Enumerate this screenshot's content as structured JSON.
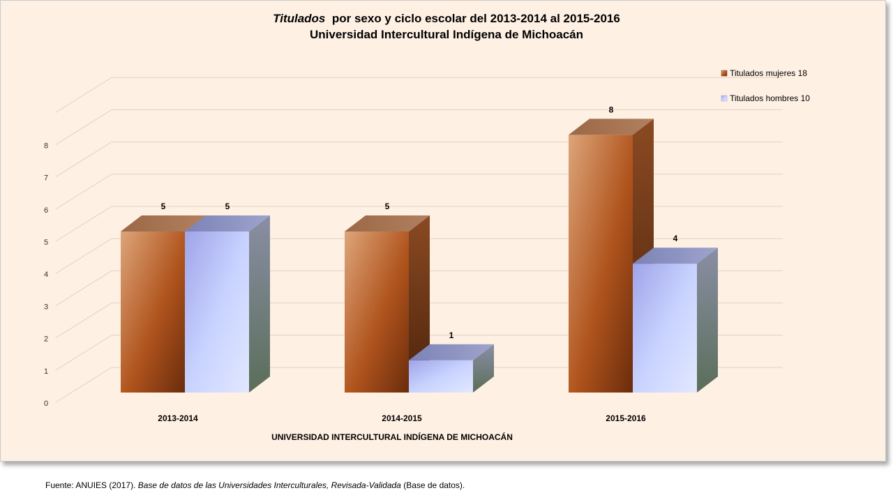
{
  "chart_data": {
    "type": "bar",
    "title_italic": "Titulados",
    "title_rest": "por sexo y ciclo escolar del 2013-2014 al 2015-2016",
    "subtitle": "Universidad Intercultural Indígena de Michoacán",
    "xlabel": "UNIVERSIDAD INTERCULTURAL INDÍGENA DE MICHOACÁN",
    "ylabel": "",
    "categories": [
      "2013-2014",
      "2014-2015",
      "2015-2016"
    ],
    "series": [
      {
        "name": "Titulados mujeres 18",
        "values": [
          5,
          5,
          8
        ],
        "color": "#b0602a"
      },
      {
        "name": "Titulados hombres 10",
        "values": [
          5,
          1,
          4
        ],
        "color": "#c8d4ff"
      }
    ],
    "ylim": [
      0,
      8
    ],
    "yticks": [
      0,
      1,
      2,
      3,
      4,
      5,
      6,
      7,
      8
    ],
    "grid": true,
    "legend_position": "top-right",
    "style": "3d-clustered-column"
  },
  "source": {
    "prefix": "Fuente:  ANUIES  (2017).",
    "italic": "Base de datos de las Universidades  Interculturales, Revisada-Validada",
    "suffix": " (Base de datos)."
  }
}
